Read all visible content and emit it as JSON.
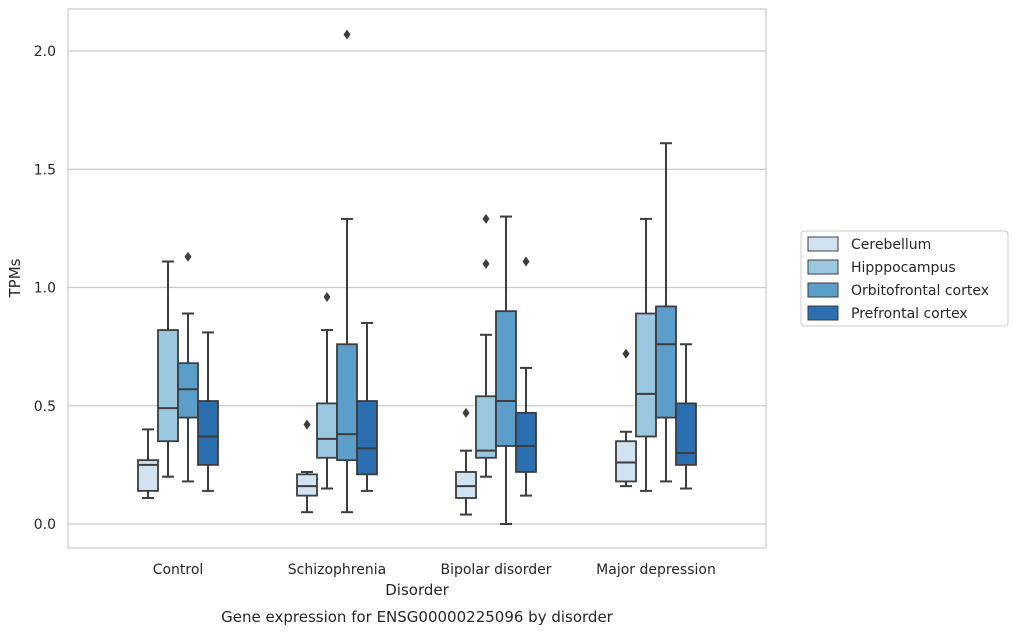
{
  "chart_data": {
    "type": "box",
    "caption": "Gene expression for ENSG00000225096 by disorder",
    "xlabel": "Disorder",
    "ylabel": "TPMs",
    "ylim": [
      -0.1,
      2.18
    ],
    "yticks": [
      "0.0",
      "0.5",
      "1.0",
      "1.5",
      "2.0"
    ],
    "ytick_values": [
      0.0,
      0.5,
      1.0,
      1.5,
      2.0
    ],
    "grid": true,
    "legend_position": "right",
    "categories": [
      "Control",
      "Schizophrenia",
      "Bipolar disorder",
      "Major depression"
    ],
    "series": [
      {
        "name": "Cerebellum",
        "color": "#d1e2f2",
        "boxes": [
          {
            "whislo": 0.11,
            "q1": 0.14,
            "med": 0.25,
            "q3": 0.27,
            "whishi": 0.4,
            "fliers": []
          },
          {
            "whislo": 0.05,
            "q1": 0.12,
            "med": 0.16,
            "q3": 0.21,
            "whishi": 0.22,
            "fliers": [
              0.42
            ]
          },
          {
            "whislo": 0.04,
            "q1": 0.11,
            "med": 0.16,
            "q3": 0.22,
            "whishi": 0.31,
            "fliers": [
              0.47
            ]
          },
          {
            "whislo": 0.16,
            "q1": 0.18,
            "med": 0.26,
            "q3": 0.35,
            "whishi": 0.39,
            "fliers": [
              0.72
            ]
          }
        ]
      },
      {
        "name": "Hipppocampus",
        "color": "#9ac8e0",
        "boxes": [
          {
            "whislo": 0.2,
            "q1": 0.35,
            "med": 0.49,
            "q3": 0.82,
            "whishi": 1.11,
            "fliers": []
          },
          {
            "whislo": 0.15,
            "q1": 0.28,
            "med": 0.36,
            "q3": 0.51,
            "whishi": 0.82,
            "fliers": [
              0.96
            ]
          },
          {
            "whislo": 0.2,
            "q1": 0.28,
            "med": 0.31,
            "q3": 0.54,
            "whishi": 0.8,
            "fliers": [
              1.1,
              1.29
            ]
          },
          {
            "whislo": 0.14,
            "q1": 0.37,
            "med": 0.55,
            "q3": 0.89,
            "whishi": 1.29,
            "fliers": []
          }
        ]
      },
      {
        "name": "Orbitofrontal cortex",
        "color": "#5a9ec9",
        "boxes": [
          {
            "whislo": 0.18,
            "q1": 0.45,
            "med": 0.57,
            "q3": 0.68,
            "whishi": 0.89,
            "fliers": [
              1.13
            ]
          },
          {
            "whislo": 0.05,
            "q1": 0.27,
            "med": 0.38,
            "q3": 0.76,
            "whishi": 1.29,
            "fliers": [
              2.07
            ]
          },
          {
            "whislo": 0.0,
            "q1": 0.33,
            "med": 0.52,
            "q3": 0.9,
            "whishi": 1.3,
            "fliers": []
          },
          {
            "whislo": 0.18,
            "q1": 0.45,
            "med": 0.76,
            "q3": 0.92,
            "whishi": 1.61,
            "fliers": []
          }
        ]
      },
      {
        "name": "Prefrontal cortex",
        "color": "#2c6fb0",
        "boxes": [
          {
            "whislo": 0.14,
            "q1": 0.25,
            "med": 0.37,
            "q3": 0.52,
            "whishi": 0.81,
            "fliers": []
          },
          {
            "whislo": 0.14,
            "q1": 0.21,
            "med": 0.32,
            "q3": 0.52,
            "whishi": 0.85,
            "fliers": []
          },
          {
            "whislo": 0.12,
            "q1": 0.22,
            "med": 0.33,
            "q3": 0.47,
            "whishi": 0.66,
            "fliers": [
              1.11
            ]
          },
          {
            "whislo": 0.15,
            "q1": 0.25,
            "med": 0.3,
            "q3": 0.51,
            "whishi": 0.76,
            "fliers": []
          }
        ]
      }
    ]
  }
}
